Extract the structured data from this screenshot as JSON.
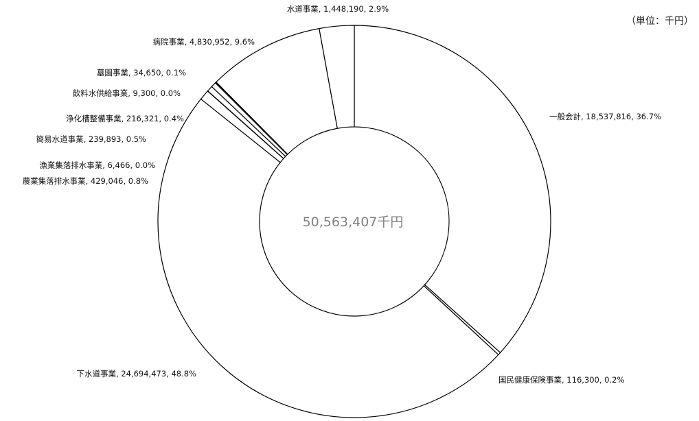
{
  "unit_label": "（単位：千円）",
  "center_label": "50,563,407千円",
  "chart_data": {
    "type": "pie",
    "total": 50563407,
    "center_label": "50,563,407千円",
    "unit": "千円",
    "slices": [
      {
        "name": "一般会計",
        "value": 18537816,
        "percent": 36.7,
        "label": "一般会計, 18,537,816, 36.7%"
      },
      {
        "name": "国民健康保険事業",
        "value": 116300,
        "percent": 0.2,
        "label": "国民健康保険事業, 116,300, 0.2%"
      },
      {
        "name": "下水道事業",
        "value": 24694473,
        "percent": 48.8,
        "label": "下水道事業, 24,694,473, 48.8%"
      },
      {
        "name": "農業集落排水事業",
        "value": 429046,
        "percent": 0.8,
        "label": "農業集落排水事業, 429,046, 0.8%"
      },
      {
        "name": "漁業集落排水事業",
        "value": 6466,
        "percent": 0.0,
        "label": "漁業集落排水事業, 6,466, 0.0%"
      },
      {
        "name": "簡易水道事業",
        "value": 239893,
        "percent": 0.5,
        "label": "簡易水道事業, 239,893, 0.5%"
      },
      {
        "name": "浄化槽整備事業",
        "value": 216321,
        "percent": 0.4,
        "label": "浄化槽整備事業, 216,321, 0.4%"
      },
      {
        "name": "飲料水供給事業",
        "value": 9300,
        "percent": 0.0,
        "label": "飲料水供給事業, 9,300, 0.0%"
      },
      {
        "name": "墓園事業",
        "value": 34650,
        "percent": 0.1,
        "label": "墓園事業, 34,650, 0.1%"
      },
      {
        "name": "病院事業",
        "value": 4830952,
        "percent": 9.6,
        "label": "病院事業, 4,830,952, 9.6%"
      },
      {
        "name": "水道事業",
        "value": 1448190,
        "percent": 2.9,
        "label": "水道事業, 1,448,190, 2.9%"
      }
    ]
  }
}
